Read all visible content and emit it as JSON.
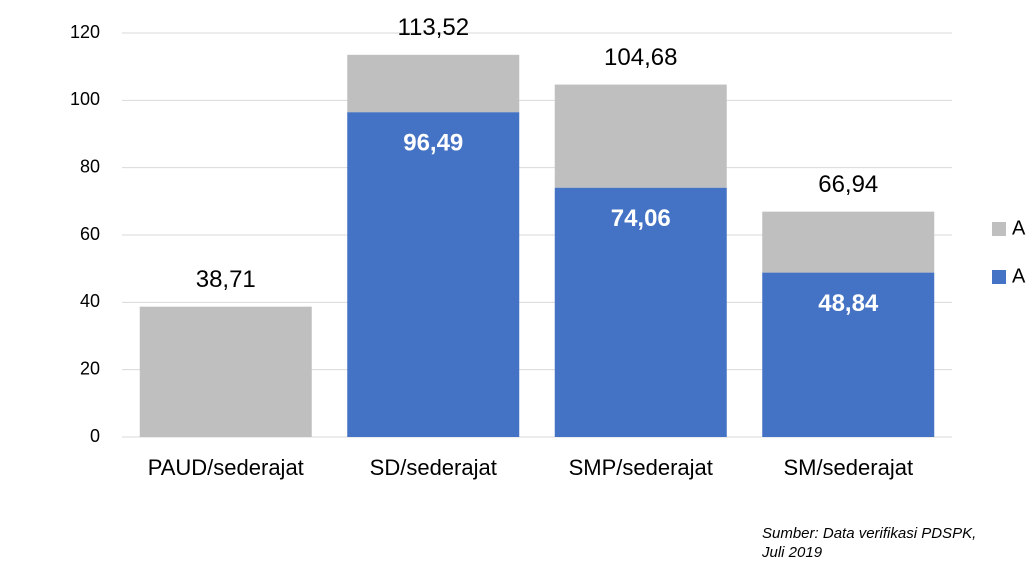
{
  "chart_data": {
    "type": "stacked_bar",
    "categories": [
      "PAUD/sederajat",
      "SD/sederajat",
      "SMP/sederajat",
      "SM/sederajat"
    ],
    "series": [
      {
        "name": "A",
        "color": "#4472c4",
        "values": [
          null,
          96.49,
          74.06,
          48.84
        ],
        "value_labels": [
          null,
          "96,49",
          "74,06",
          "48,84"
        ]
      },
      {
        "name": "A",
        "color": "#bfbfbf",
        "values": [
          38.71,
          17.03,
          30.62,
          18.1
        ]
      }
    ],
    "totals": {
      "values": [
        38.71,
        113.52,
        104.68,
        66.94
      ],
      "value_labels": [
        "38,71",
        "113,52",
        "104,68",
        "66,94"
      ]
    },
    "ylim": [
      0,
      120
    ],
    "yticks": [
      0,
      20,
      40,
      60,
      80,
      100,
      120
    ],
    "grid": true,
    "legend": "right",
    "source": [
      "Sumber:  Data verifikasi PDSPK,",
      "Juli 2019"
    ]
  }
}
